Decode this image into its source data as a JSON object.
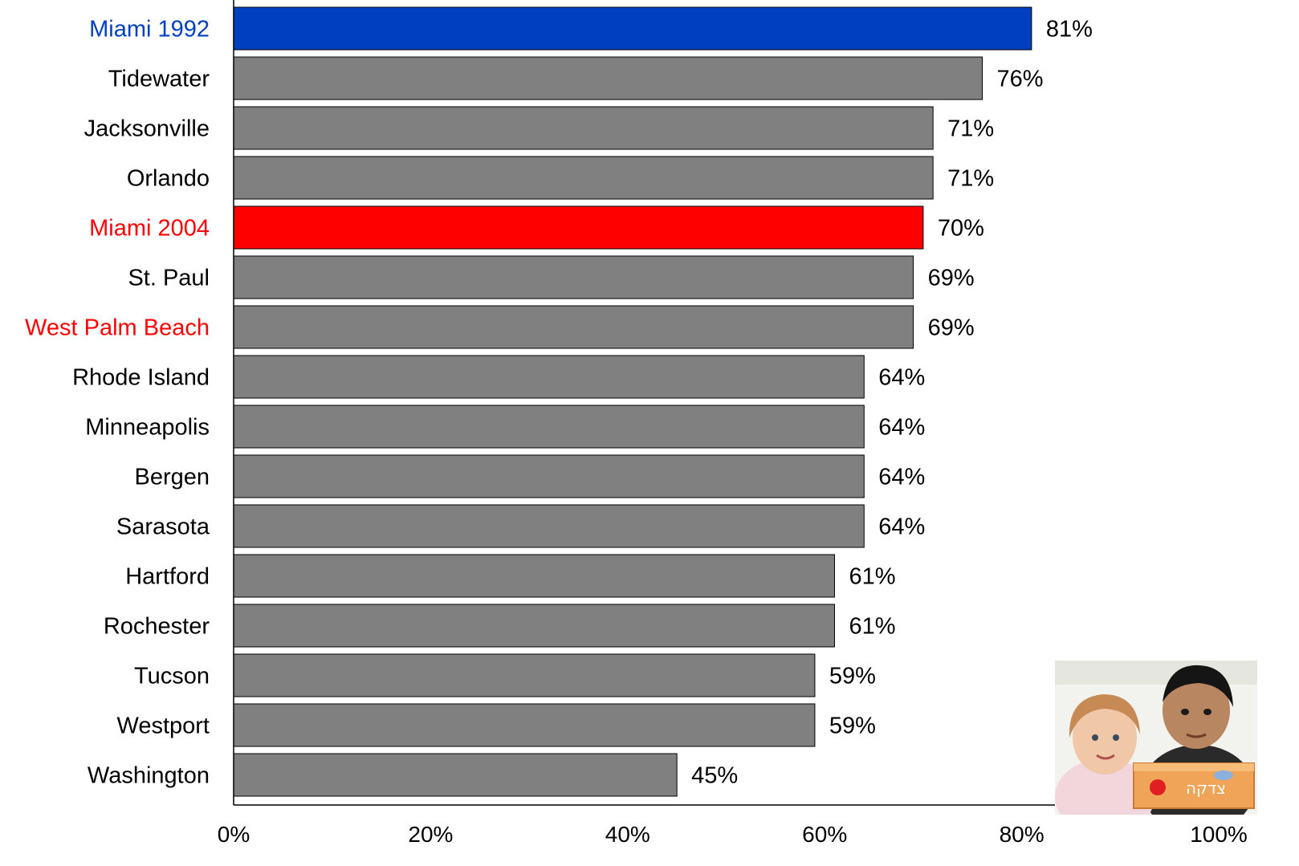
{
  "chart_data": {
    "type": "bar",
    "orientation": "horizontal",
    "categories": [
      "Miami 1992",
      "Tidewater",
      "Jacksonville",
      "Orlando",
      "Miami 2004",
      "St. Paul",
      "West Palm Beach",
      "Rhode Island",
      "Minneapolis",
      "Bergen",
      "Sarasota",
      "Hartford",
      "Rochester",
      "Tucson",
      "Westport",
      "Washington"
    ],
    "values": [
      81,
      76,
      71,
      71,
      70,
      69,
      69,
      64,
      64,
      64,
      64,
      61,
      61,
      59,
      59,
      45
    ],
    "value_labels": [
      "81%",
      "76%",
      "71%",
      "71%",
      "70%",
      "69%",
      "69%",
      "64%",
      "64%",
      "64%",
      "64%",
      "61%",
      "61%",
      "59%",
      "59%",
      "45%"
    ],
    "bar_colors": [
      "#0040C0",
      "#808080",
      "#808080",
      "#808080",
      "#FF0000",
      "#808080",
      "#808080",
      "#808080",
      "#808080",
      "#808080",
      "#808080",
      "#808080",
      "#808080",
      "#808080",
      "#808080",
      "#808080"
    ],
    "label_colors": [
      "#0040C0",
      "#000000",
      "#000000",
      "#000000",
      "#FF0000",
      "#000000",
      "#FF0000",
      "#000000",
      "#000000",
      "#000000",
      "#000000",
      "#000000",
      "#000000",
      "#000000",
      "#000000",
      "#000000"
    ],
    "xlim": [
      0,
      100
    ],
    "xticks": [
      0,
      20,
      40,
      60,
      80,
      100
    ],
    "xtick_labels": [
      "0%",
      "20%",
      "40%",
      "60%",
      "80%",
      "100%"
    ],
    "title": "",
    "xlabel": "",
    "ylabel": "",
    "grid": false,
    "legend": "none"
  },
  "photo": {
    "icon": "children-photo",
    "box_text": "צדקה"
  }
}
